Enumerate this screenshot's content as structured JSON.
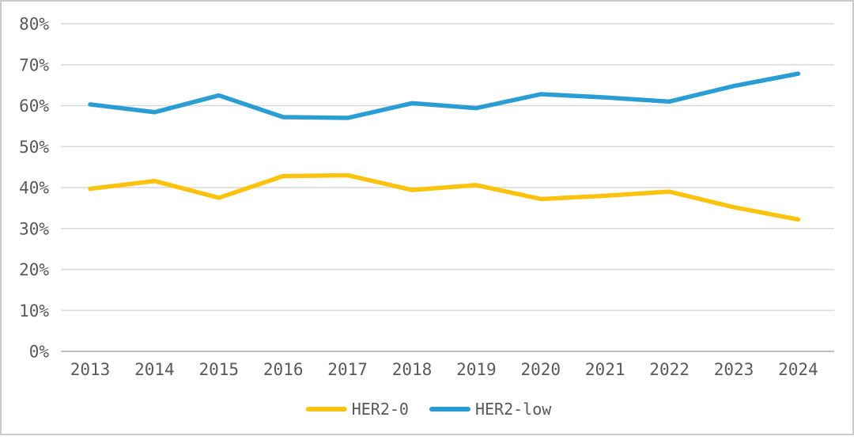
{
  "chart_data": {
    "type": "line",
    "title": "",
    "xlabel": "",
    "ylabel": "",
    "x": [
      "2013",
      "2014",
      "2015",
      "2016",
      "2017",
      "2018",
      "2019",
      "2020",
      "2021",
      "2022",
      "2023",
      "2024"
    ],
    "series": [
      {
        "name": "HER2-0",
        "color": "#FBC30D",
        "values": [
          39.7,
          41.6,
          37.5,
          42.8,
          43.0,
          39.4,
          40.6,
          37.2,
          38.0,
          39.0,
          35.2,
          32.2
        ]
      },
      {
        "name": "HER2-low",
        "color": "#2A9DD4",
        "values": [
          60.3,
          58.4,
          62.5,
          57.2,
          57.0,
          60.6,
          59.4,
          62.8,
          62.0,
          61.0,
          64.8,
          67.8
        ]
      }
    ],
    "ylim": [
      0,
      80
    ],
    "ytick_step": 10,
    "ytick_suffix": "%",
    "grid": true,
    "legend_position": "bottom"
  },
  "styles": {
    "gridline_color": "#d9d9d9",
    "axis_line_color": "#bfbfbf",
    "text_color": "#595959",
    "background": "#ffffff",
    "frame_border_color": "#c9cdd0",
    "line_width": 5.5
  }
}
